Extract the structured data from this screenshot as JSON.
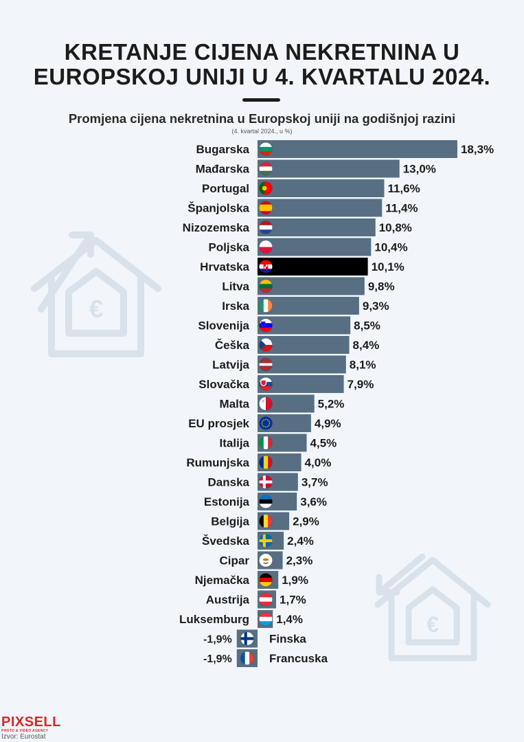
{
  "header": {
    "title_line1": "KRETANJE CIJENA NEKRETNINA U",
    "title_line2": "EUROPSKOJ UNIJI U 4. KVARTALU 2024."
  },
  "chart_data": {
    "type": "bar",
    "orientation": "horizontal",
    "title": "Promjena cijena nekretnina u Europskoj uniji na godišnjoj razini",
    "subtitle": "(4. kvartal 2024., u %)",
    "unit": "%",
    "grid": false,
    "colors": {
      "bar": "#576e83",
      "highlight": "#000000"
    },
    "categories": [
      "Bugarska",
      "Mađarska",
      "Portugal",
      "Španjolska",
      "Nizozemska",
      "Poljska",
      "Hrvatska",
      "Litva",
      "Irska",
      "Slovenija",
      "Češka",
      "Latvija",
      "Slovačka",
      "Malta",
      "EU prosjek",
      "Italija",
      "Rumunjska",
      "Danska",
      "Estonija",
      "Belgija",
      "Švedska",
      "Cipar",
      "Njemačka",
      "Austrija",
      "Luksemburg",
      "Finska",
      "Francuska"
    ],
    "values": [
      18.3,
      13.0,
      11.6,
      11.4,
      10.8,
      10.4,
      10.1,
      9.8,
      9.3,
      8.5,
      8.4,
      8.1,
      7.9,
      5.2,
      4.9,
      4.5,
      4.0,
      3.7,
      3.6,
      2.9,
      2.4,
      2.3,
      1.9,
      1.7,
      1.4,
      -1.9,
      -1.9
    ],
    "value_labels": [
      "18,3%",
      "13,0%",
      "11,6%",
      "11,4%",
      "10,8%",
      "10,4%",
      "10,1%",
      "9,8%",
      "9,3%",
      "8,5%",
      "8,4%",
      "8,1%",
      "7,9%",
      "5,2%",
      "4,9%",
      "4,5%",
      "4,0%",
      "3,7%",
      "3,6%",
      "2,9%",
      "2,4%",
      "2,3%",
      "1,9%",
      "1,7%",
      "1,4%",
      "-1,9%",
      "-1,9%"
    ],
    "flag_icons": [
      "bg-flag-icon",
      "hu-flag-icon",
      "pt-flag-icon",
      "es-flag-icon",
      "nl-flag-icon",
      "pl-flag-icon",
      "hr-flag-icon",
      "lt-flag-icon",
      "ie-flag-icon",
      "si-flag-icon",
      "cz-flag-icon",
      "lv-flag-icon",
      "sk-flag-icon",
      "mt-flag-icon",
      "eu-flag-icon",
      "it-flag-icon",
      "ro-flag-icon",
      "dk-flag-icon",
      "ee-flag-icon",
      "be-flag-icon",
      "se-flag-icon",
      "cy-flag-icon",
      "de-flag-icon",
      "at-flag-icon",
      "lu-flag-icon",
      "fi-flag-icon",
      "fr-flag-icon"
    ],
    "highlight": "Hrvatska"
  },
  "footer": {
    "brand": "PIXSELL",
    "brand_tagline": "PHOTO & VIDEO AGENCY",
    "source": "Izvor: Eurostat"
  }
}
